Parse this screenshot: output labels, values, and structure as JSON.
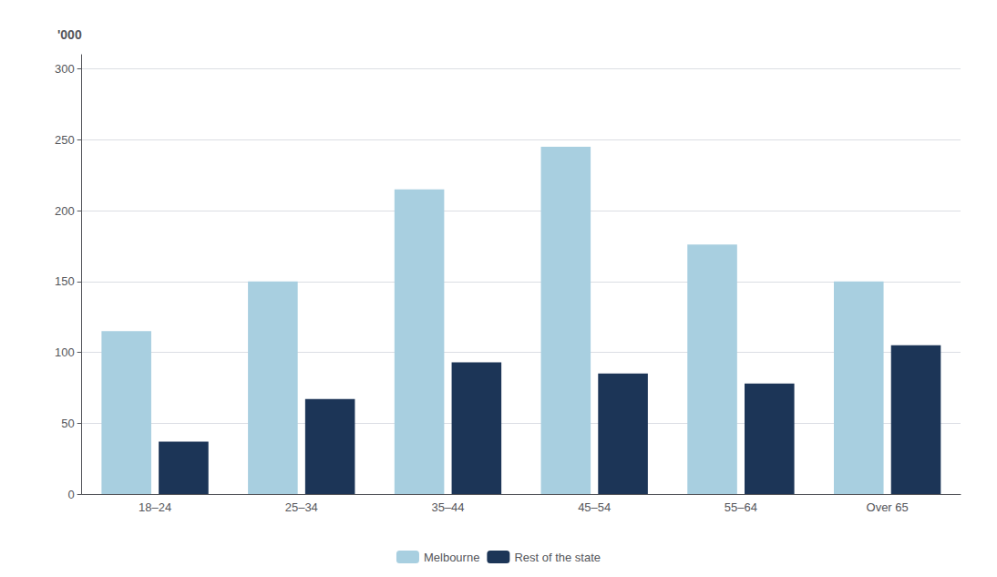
{
  "chart_data": {
    "type": "bar",
    "ylabel": "'000",
    "categories": [
      "18–24",
      "25–34",
      "35–44",
      "45–54",
      "55–64",
      "Over 65"
    ],
    "series": [
      {
        "name": "Melbourne",
        "color": "#a8cfe0",
        "values": [
          115,
          150,
          215,
          245,
          176,
          150
        ]
      },
      {
        "name": "Rest of the state",
        "color": "#1c3557",
        "values": [
          37,
          67,
          93,
          85,
          78,
          105
        ]
      }
    ],
    "ylim": [
      0,
      310
    ],
    "yticks": [
      0,
      50,
      100,
      150,
      200,
      250,
      300
    ],
    "grid": true,
    "legend": "bottom"
  }
}
